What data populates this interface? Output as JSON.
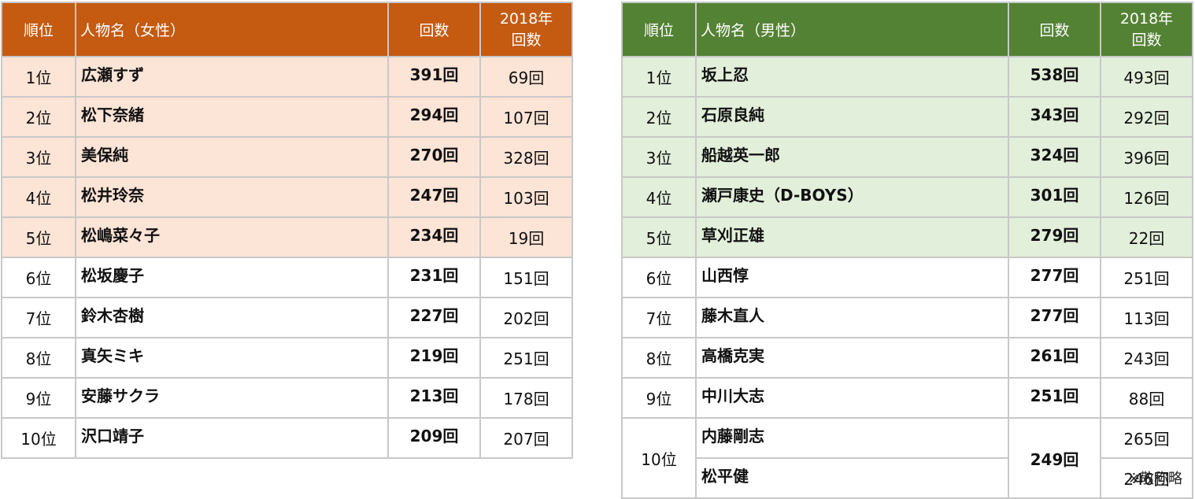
{
  "female": {
    "headers": {
      "rank": "順位",
      "name": "人物名（女性）",
      "count": "回数",
      "year_line1": "2018年",
      "year_line2": "回数"
    },
    "rows": [
      {
        "rank": "1位",
        "name": "広瀬すず",
        "count": "391回",
        "count2018": "69回"
      },
      {
        "rank": "2位",
        "name": "松下奈緒",
        "count": "294回",
        "count2018": "107回"
      },
      {
        "rank": "3位",
        "name": "美保純",
        "count": "270回",
        "count2018": "328回"
      },
      {
        "rank": "4位",
        "name": "松井玲奈",
        "count": "247回",
        "count2018": "103回"
      },
      {
        "rank": "5位",
        "name": "松嶋菜々子",
        "count": "234回",
        "count2018": "19回"
      },
      {
        "rank": "6位",
        "name": "松坂慶子",
        "count": "231回",
        "count2018": "151回"
      },
      {
        "rank": "7位",
        "name": "鈴木杏樹",
        "count": "227回",
        "count2018": "202回"
      },
      {
        "rank": "8位",
        "name": "真矢ミキ",
        "count": "219回",
        "count2018": "251回"
      },
      {
        "rank": "9位",
        "name": "安藤サクラ",
        "count": "213回",
        "count2018": "178回"
      },
      {
        "rank": "10位",
        "name": "沢口靖子",
        "count": "209回",
        "count2018": "207回"
      }
    ]
  },
  "male": {
    "headers": {
      "rank": "順位",
      "name": "人物名（男性）",
      "count": "回数",
      "year_line1": "2018年",
      "year_line2": "回数"
    },
    "rows": [
      {
        "rank": "1位",
        "name": "坂上忍",
        "count": "538回",
        "count2018": "493回"
      },
      {
        "rank": "2位",
        "name": "石原良純",
        "count": "343回",
        "count2018": "292回"
      },
      {
        "rank": "3位",
        "name": "船越英一郎",
        "count": "324回",
        "count2018": "396回"
      },
      {
        "rank": "4位",
        "name": "瀬戸康史（D-BOYS）",
        "count": "301回",
        "count2018": "126回"
      },
      {
        "rank": "5位",
        "name": "草刈正雄",
        "count": "279回",
        "count2018": "22回"
      },
      {
        "rank": "6位",
        "name": "山西惇",
        "count": "277回",
        "count2018": "251回"
      },
      {
        "rank": "7位",
        "name": "藤木直人",
        "count": "277回",
        "count2018": "113回"
      },
      {
        "rank": "8位",
        "name": "高橋克実",
        "count": "261回",
        "count2018": "243回"
      },
      {
        "rank": "9位",
        "name": "中川大志",
        "count": "251回",
        "count2018": "88回"
      }
    ],
    "tied": {
      "rank": "10位",
      "count": "249回",
      "entries": [
        {
          "name": "内藤剛志",
          "count2018": "265回"
        },
        {
          "name": "松平健",
          "count2018": "246回"
        }
      ]
    }
  },
  "footnote": "※敬称略",
  "colors": {
    "female_header": "#c55a11",
    "female_highlight": "#fce4d6",
    "male_header": "#548235",
    "male_highlight": "#e2efda"
  }
}
